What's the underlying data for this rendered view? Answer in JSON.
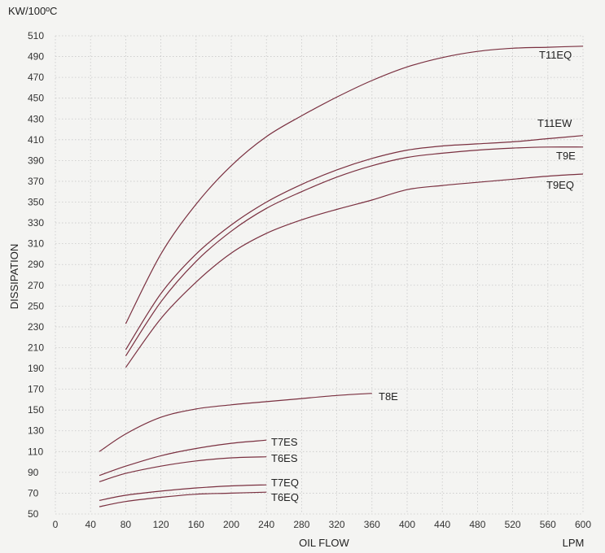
{
  "chart_data": {
    "type": "line",
    "title": "",
    "ylabel": "DISSIPATION",
    "yunit": "KW/100ºC",
    "xlabel": "OIL FLOW",
    "xunit": "LPM",
    "xlim": [
      0,
      600
    ],
    "ylim": [
      50,
      510
    ],
    "xticks": [
      0,
      40,
      80,
      120,
      160,
      200,
      240,
      280,
      320,
      360,
      400,
      440,
      480,
      520,
      560,
      600
    ],
    "yticks": [
      50,
      70,
      90,
      110,
      130,
      150,
      170,
      190,
      210,
      230,
      250,
      270,
      290,
      310,
      330,
      350,
      370,
      390,
      410,
      430,
      450,
      470,
      490,
      510
    ],
    "grid": true,
    "line_color": "#7a3040",
    "series": [
      {
        "name": "T11EQ",
        "x": [
          80,
          120,
          160,
          200,
          240,
          280,
          320,
          360,
          400,
          440,
          480,
          520,
          560,
          600
        ],
        "y": [
          233,
          300,
          348,
          385,
          413,
          433,
          451,
          467,
          480,
          489,
          495,
          498,
          499,
          500
        ]
      },
      {
        "name": "T11EW",
        "x": [
          80,
          120,
          160,
          200,
          240,
          280,
          320,
          360,
          400,
          440,
          480,
          520,
          560,
          600
        ],
        "y": [
          208,
          262,
          300,
          328,
          350,
          367,
          381,
          392,
          400,
          404,
          406,
          408,
          411,
          414
        ]
      },
      {
        "name": "T9E",
        "x": [
          80,
          120,
          160,
          200,
          240,
          280,
          320,
          360,
          400,
          440,
          480,
          520,
          560,
          600
        ],
        "y": [
          202,
          254,
          293,
          322,
          344,
          360,
          374,
          385,
          393,
          397,
          400,
          402,
          403,
          403
        ]
      },
      {
        "name": "T9EQ",
        "x": [
          80,
          120,
          160,
          200,
          240,
          280,
          320,
          360,
          400,
          440,
          480,
          520,
          560,
          600
        ],
        "y": [
          191,
          238,
          273,
          301,
          320,
          333,
          343,
          352,
          362,
          366,
          369,
          372,
          375,
          377
        ]
      },
      {
        "name": "T8E",
        "x": [
          50,
          80,
          120,
          160,
          200,
          240,
          280,
          320,
          360
        ],
        "y": [
          110,
          127,
          143,
          151,
          155,
          158,
          161,
          164,
          166
        ]
      },
      {
        "name": "T7ES",
        "x": [
          50,
          80,
          120,
          160,
          200,
          240
        ],
        "y": [
          87,
          96,
          106,
          113,
          118,
          121
        ]
      },
      {
        "name": "T6ES",
        "x": [
          50,
          80,
          120,
          160,
          200,
          240
        ],
        "y": [
          81,
          89,
          96,
          101,
          104,
          105
        ]
      },
      {
        "name": "T7EQ",
        "x": [
          50,
          80,
          120,
          160,
          200,
          240
        ],
        "y": [
          63,
          68,
          72,
          75,
          77,
          78
        ]
      },
      {
        "name": "T6EQ",
        "x": [
          50,
          80,
          120,
          160,
          200,
          240
        ],
        "y": [
          57,
          62,
          66,
          69,
          70,
          71
        ]
      }
    ]
  }
}
